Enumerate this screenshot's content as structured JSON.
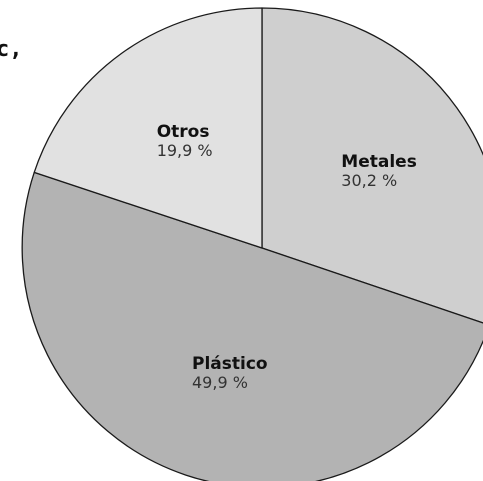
{
  "edge_fragment": "c,",
  "chart_data": {
    "type": "pie",
    "slices": [
      {
        "label": "Metales",
        "value_text": "30,2 %",
        "value": 30.2,
        "color": "#cfcfcf"
      },
      {
        "label": "Plástico",
        "value_text": "49,9 %",
        "value": 49.9,
        "color": "#b3b3b3"
      },
      {
        "label": "Otros",
        "value_text": "19,9 %",
        "value": 19.9,
        "color": "#e1e1e1"
      }
    ],
    "start": "12 o'clock",
    "direction": "clockwise",
    "stroke_color": "#1a1a1a"
  }
}
